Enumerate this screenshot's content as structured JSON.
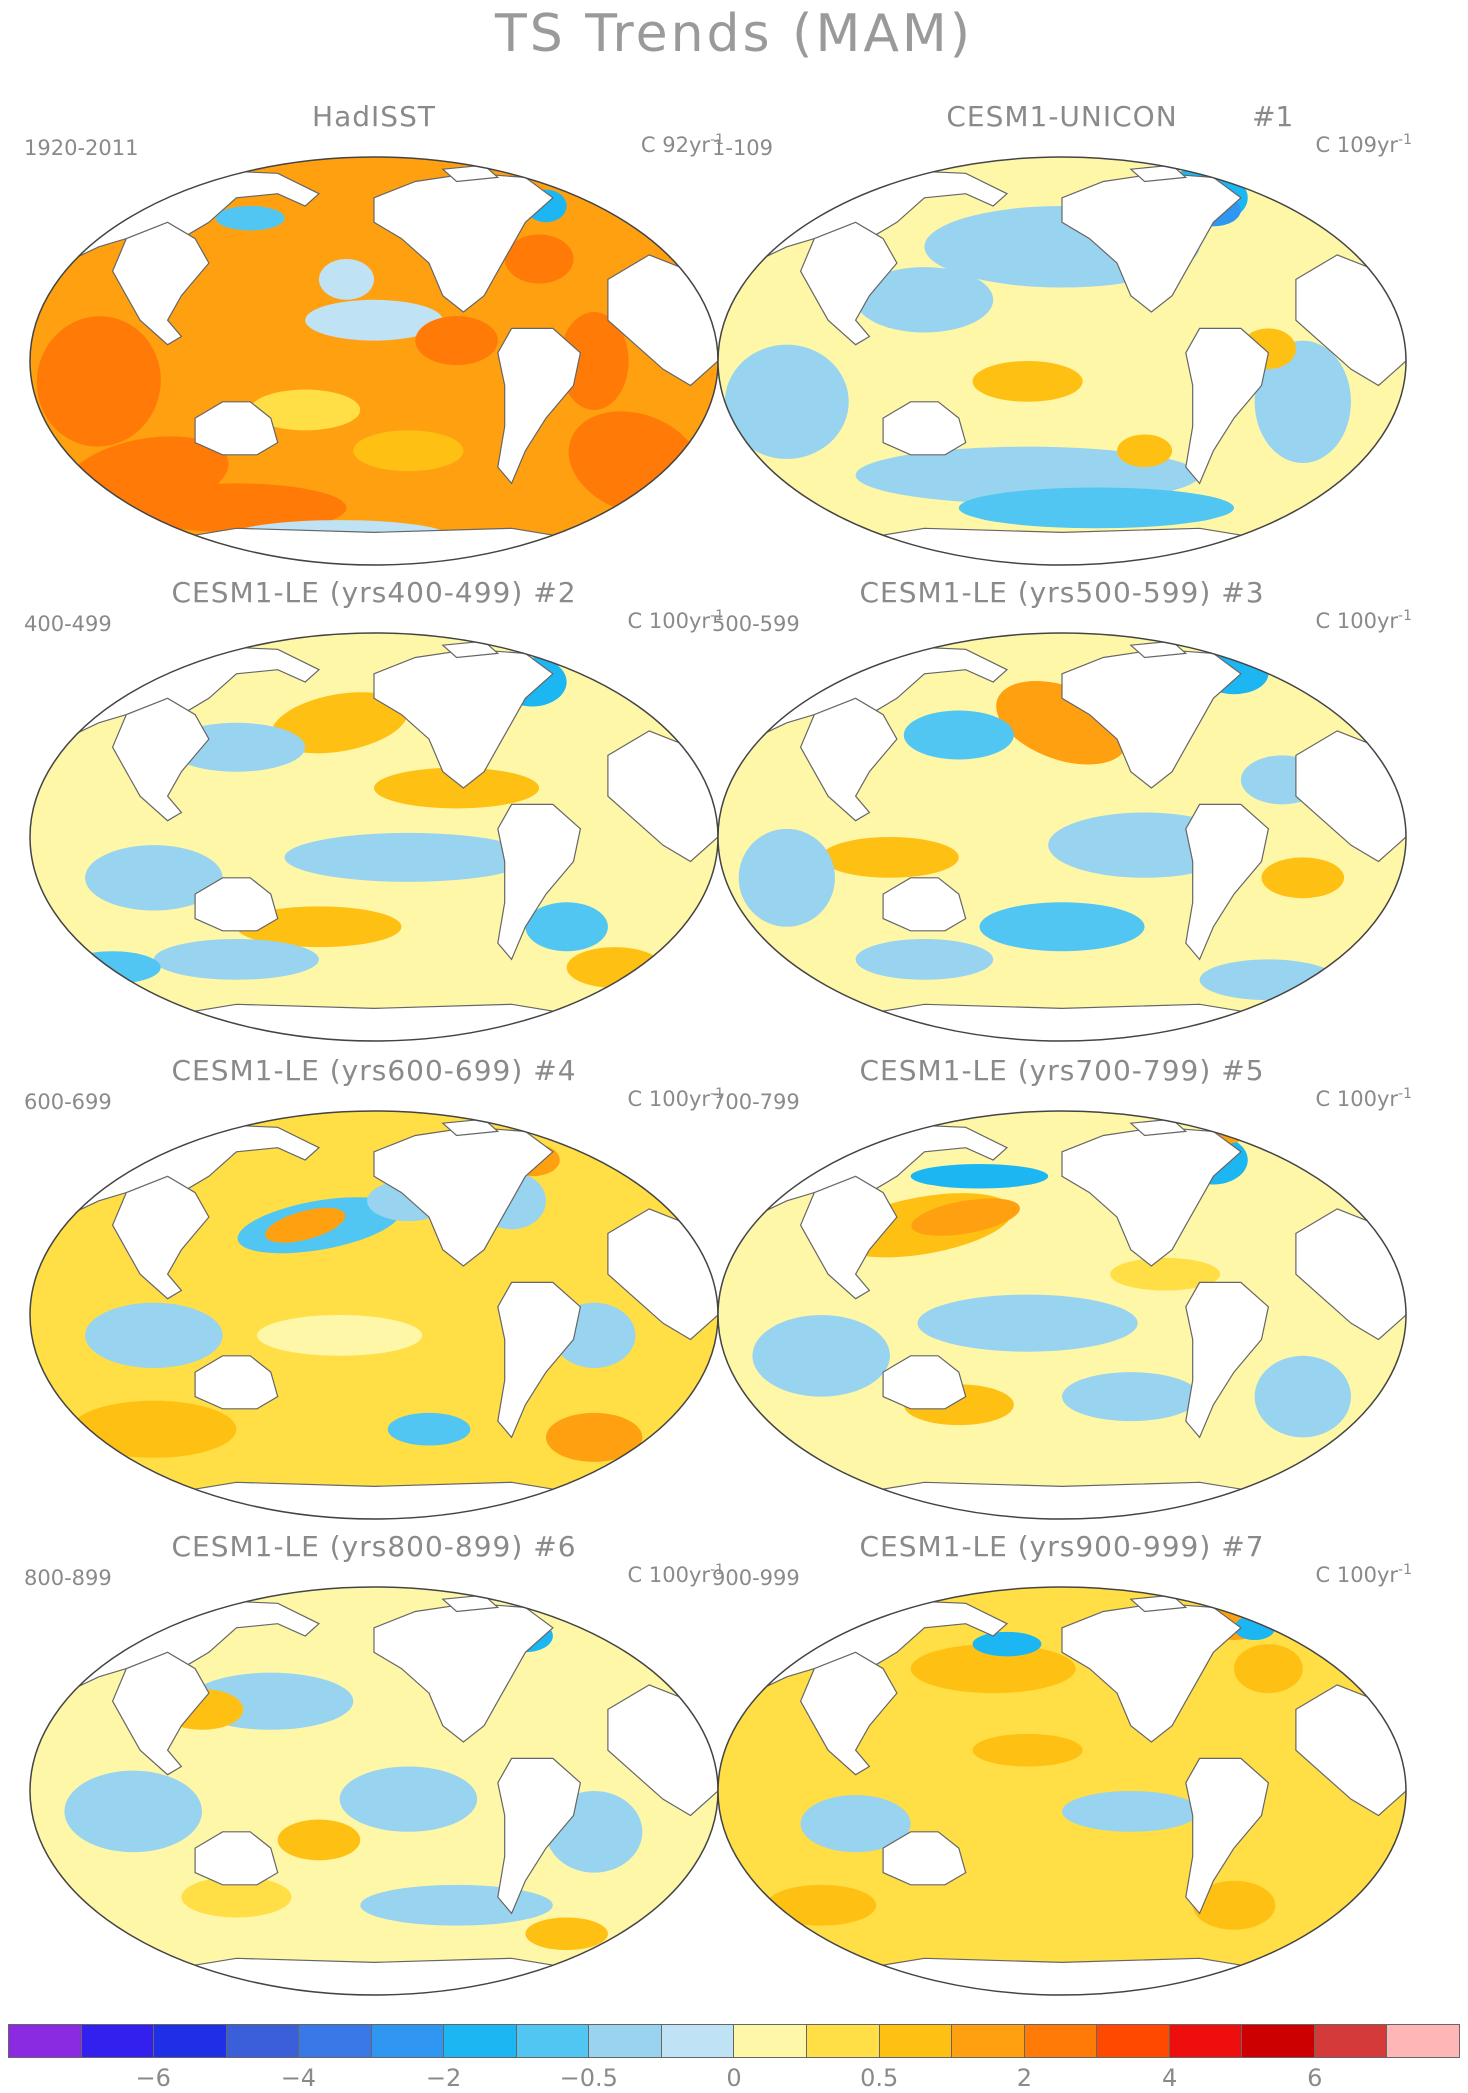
{
  "figure": {
    "title": "TS Trends (MAM)"
  },
  "panels": [
    {
      "title": "HadISST",
      "tag": "",
      "hash": "",
      "period": "1920-2011",
      "units_base": "C 92yr",
      "units_exp": "-1",
      "regime": "hadisst"
    },
    {
      "title": "CESM1-UNICON",
      "tag": "",
      "hash": "#1",
      "period": "1-109",
      "units_base": "C 109yr",
      "units_exp": "-1",
      "regime": "unicon"
    },
    {
      "title": "CESM1-LE (yrs400-499)",
      "tag": "#2",
      "hash": "",
      "period": "400-499",
      "units_base": "C 100yr",
      "units_exp": "-1",
      "regime": "le2"
    },
    {
      "title": "CESM1-LE (yrs500-599)",
      "tag": "#3",
      "hash": "",
      "period": "500-599",
      "units_base": "C 100yr",
      "units_exp": "-1",
      "regime": "le3"
    },
    {
      "title": "CESM1-LE (yrs600-699)",
      "tag": "#4",
      "hash": "",
      "period": "600-699",
      "units_base": "C 100yr",
      "units_exp": "-1",
      "regime": "le4"
    },
    {
      "title": "CESM1-LE (yrs700-799)",
      "tag": "#5",
      "hash": "",
      "period": "700-799",
      "units_base": "C 100yr",
      "units_exp": "-1",
      "regime": "le5"
    },
    {
      "title": "CESM1-LE (yrs800-899)",
      "tag": "#6",
      "hash": "",
      "period": "800-899",
      "units_base": "C 100yr",
      "units_exp": "-1",
      "regime": "le6"
    },
    {
      "title": "CESM1-LE (yrs900-999)",
      "tag": "#7",
      "hash": "",
      "period": "900-999",
      "units_base": "C 100yr",
      "units_exp": "-1",
      "regime": "le7"
    }
  ],
  "colorbar": {
    "colors": [
      "#8a2be2",
      "#3320ee",
      "#1e2fe6",
      "#3a5fd8",
      "#3a78e8",
      "#2f96f2",
      "#1cb6f2",
      "#52c6f2",
      "#98d4ef",
      "#bfe2f4",
      "#fff7a8",
      "#ffde46",
      "#ffc014",
      "#ffa010",
      "#ff7a06",
      "#ff4800",
      "#ee0e0e",
      "#cc0000",
      "#d43a3a",
      "#ffb6b6"
    ],
    "tick_labels": [
      "−6",
      "−4",
      "−2",
      "−0.5",
      "0",
      "0.5",
      "2",
      "4",
      "6"
    ],
    "tick_positions_index": [
      2,
      4,
      6,
      8,
      10,
      12,
      14,
      16,
      18
    ]
  },
  "palette": {
    "ocean_default": "#fff7a8",
    "land": "#ffffff",
    "outline": "#444444",
    "coast": "#666666"
  }
}
